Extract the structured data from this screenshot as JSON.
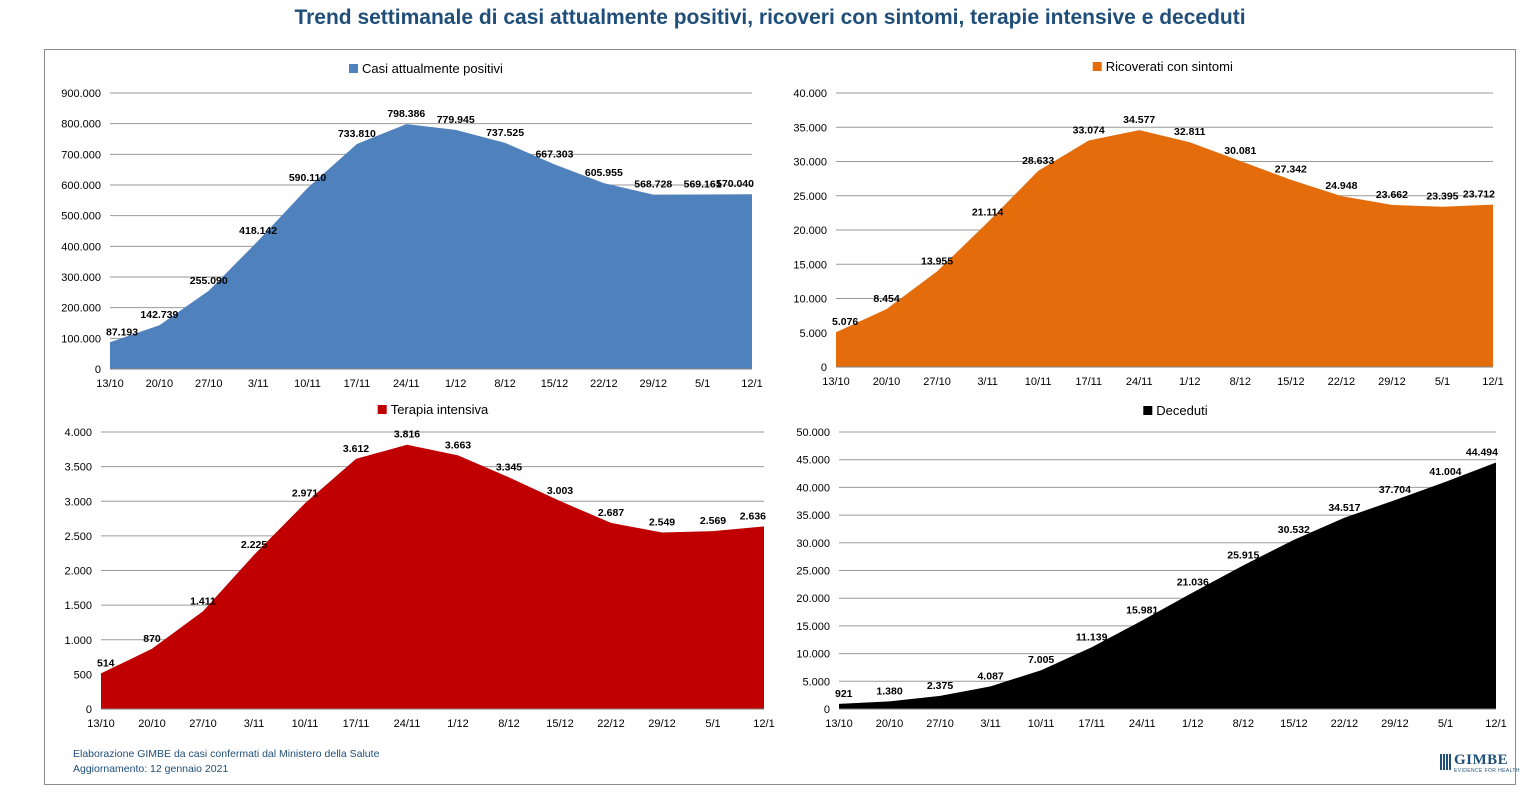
{
  "page": {
    "title": "Trend settimanale di casi attualmente positivi, ricoveri con sintomi, terapie intensive e deceduti",
    "footer_line1": "Elaborazione GIMBE da casi confermati dal Ministero della Salute",
    "footer_line2": "Aggiornamento: 12 gennaio 2021",
    "logo_text": "GIMBE",
    "logo_sub": "EVIDENCE FOR HEALTH",
    "brand_color": "#1F4E79"
  },
  "chart_data": [
    {
      "type": "area",
      "title": "",
      "legend": "Casi attualmente positivi",
      "legend_position": "top-center",
      "color": "#4F81BD",
      "categories": [
        "13/10",
        "20/10",
        "27/10",
        "3/11",
        "10/11",
        "17/11",
        "24/11",
        "1/12",
        "8/12",
        "15/12",
        "22/12",
        "29/12",
        "5/1",
        "12/1"
      ],
      "values": [
        87193,
        142739,
        255090,
        418142,
        590110,
        733810,
        798386,
        779945,
        737525,
        667303,
        605955,
        568728,
        569161,
        570040
      ],
      "data_labels": [
        "87.193",
        "142.739",
        "255.090",
        "418.142",
        "590.110",
        "733.810",
        "798.386",
        "779.945",
        "737.525",
        "667.303",
        "605.955",
        "568.728",
        "569.161",
        "570.040"
      ],
      "ylim": [
        0,
        900000
      ],
      "yticks": [
        0,
        100000,
        200000,
        300000,
        400000,
        500000,
        600000,
        700000,
        800000,
        900000
      ],
      "ytick_labels": [
        "0",
        "100.000",
        "200.000",
        "300.000",
        "400.000",
        "500.000",
        "600.000",
        "700.000",
        "800.000",
        "900.000"
      ],
      "grid": true
    },
    {
      "type": "area",
      "title": "",
      "legend": "Ricoverati con sintomi",
      "legend_position": "top-center",
      "color": "#E46C0A",
      "categories": [
        "13/10",
        "20/10",
        "27/10",
        "3/11",
        "10/11",
        "17/11",
        "24/11",
        "1/12",
        "8/12",
        "15/12",
        "22/12",
        "29/12",
        "5/1",
        "12/1"
      ],
      "values": [
        5076,
        8454,
        13955,
        21114,
        28633,
        33074,
        34577,
        32811,
        30081,
        27342,
        24948,
        23662,
        23395,
        23712
      ],
      "data_labels": [
        "5.076",
        "8.454",
        "13.955",
        "21.114",
        "28.633",
        "33.074",
        "34.577",
        "32.811",
        "30.081",
        "27.342",
        "24.948",
        "23.662",
        "23.395",
        "23.712"
      ],
      "ylim": [
        0,
        40000
      ],
      "yticks": [
        0,
        5000,
        10000,
        15000,
        20000,
        25000,
        30000,
        35000,
        40000
      ],
      "ytick_labels": [
        "0",
        "5.000",
        "10.000",
        "15.000",
        "20.000",
        "25.000",
        "30.000",
        "35.000",
        "40.000"
      ],
      "grid": true
    },
    {
      "type": "area",
      "title": "",
      "legend": "Terapia intensiva",
      "legend_position": "top-center",
      "color": "#C00000",
      "categories": [
        "13/10",
        "20/10",
        "27/10",
        "3/11",
        "10/11",
        "17/11",
        "24/11",
        "1/12",
        "8/12",
        "15/12",
        "22/12",
        "29/12",
        "5/1",
        "12/1"
      ],
      "values": [
        514,
        870,
        1411,
        2225,
        2971,
        3612,
        3816,
        3663,
        3345,
        3003,
        2687,
        2549,
        2569,
        2636
      ],
      "data_labels": [
        "514",
        "870",
        "1.411",
        "2.225",
        "2.971",
        "3.612",
        "3.816",
        "3.663",
        "3.345",
        "3.003",
        "2.687",
        "2.549",
        "2.569",
        "2.636"
      ],
      "ylim": [
        0,
        4000
      ],
      "yticks": [
        0,
        500,
        1000,
        1500,
        2000,
        2500,
        3000,
        3500,
        4000
      ],
      "ytick_labels": [
        "0",
        "500",
        "1.000",
        "1.500",
        "2.000",
        "2.500",
        "3.000",
        "3.500",
        "4.000"
      ],
      "grid": true
    },
    {
      "type": "area",
      "title": "",
      "legend": "Deceduti",
      "legend_position": "top-center",
      "color": "#000000",
      "categories": [
        "13/10",
        "20/10",
        "27/10",
        "3/11",
        "10/11",
        "17/11",
        "24/11",
        "1/12",
        "8/12",
        "15/12",
        "22/12",
        "29/12",
        "5/1",
        "12/1"
      ],
      "values": [
        921,
        1380,
        2375,
        4087,
        7005,
        11139,
        15981,
        21036,
        25915,
        30532,
        34517,
        37704,
        41004,
        44494
      ],
      "data_labels": [
        "921",
        "1.380",
        "2.375",
        "4.087",
        "7.005",
        "11.139",
        "15.981",
        "21.036",
        "25.915",
        "30.532",
        "34.517",
        "37.704",
        "41.004",
        "44.494"
      ],
      "ylim": [
        0,
        50000
      ],
      "yticks": [
        0,
        5000,
        10000,
        15000,
        20000,
        25000,
        30000,
        35000,
        40000,
        45000,
        50000
      ],
      "ytick_labels": [
        "0",
        "5.000",
        "10.000",
        "15.000",
        "20.000",
        "25.000",
        "30.000",
        "35.000",
        "40.000",
        "45.000",
        "50.000"
      ],
      "grid": true
    }
  ]
}
